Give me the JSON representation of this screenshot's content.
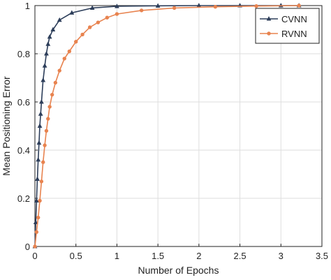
{
  "chart_data": {
    "type": "line",
    "title": "",
    "xlabel": "Number of Epochs",
    "ylabel": "Mean Positioning Error",
    "xlim": [
      0,
      3.5
    ],
    "ylim": [
      0,
      1
    ],
    "x_ticks": [
      0,
      0.5,
      1,
      1.5,
      2,
      2.5,
      3,
      3.5
    ],
    "x_tick_labels": [
      "0",
      "0.5",
      "1",
      "1.5",
      "2",
      "2.5",
      "3",
      "3.5"
    ],
    "y_ticks": [
      0,
      0.2,
      0.4,
      0.6,
      0.8,
      1
    ],
    "y_tick_labels": [
      "0",
      "0.2",
      "0.4",
      "0.6",
      "0.8",
      "1"
    ],
    "grid": true,
    "legend_position": "top-right",
    "series": [
      {
        "name": "CVNN",
        "color": "#2d3e5a",
        "marker": "triangle",
        "x": [
          0,
          0.01,
          0.02,
          0.03,
          0.04,
          0.05,
          0.06,
          0.07,
          0.08,
          0.1,
          0.12,
          0.14,
          0.16,
          0.18,
          0.22,
          0.3,
          0.45,
          0.7,
          1.0,
          1.5,
          2.0,
          2.5,
          3.0,
          3.22
        ],
        "y": [
          0.0,
          0.1,
          0.19,
          0.28,
          0.36,
          0.43,
          0.5,
          0.55,
          0.6,
          0.69,
          0.75,
          0.8,
          0.84,
          0.87,
          0.9,
          0.94,
          0.97,
          0.99,
          0.997,
          0.999,
          1.0,
          1.0,
          1.0,
          1.0
        ]
      },
      {
        "name": "RVNN",
        "color": "#e8834f",
        "marker": "circle",
        "x": [
          0,
          0.02,
          0.04,
          0.06,
          0.08,
          0.1,
          0.12,
          0.14,
          0.16,
          0.18,
          0.21,
          0.25,
          0.3,
          0.36,
          0.42,
          0.5,
          0.58,
          0.67,
          0.77,
          0.88,
          1.0,
          1.3,
          1.7,
          2.2,
          2.7,
          3.22
        ],
        "y": [
          0.0,
          0.06,
          0.12,
          0.19,
          0.27,
          0.35,
          0.42,
          0.48,
          0.53,
          0.58,
          0.63,
          0.68,
          0.73,
          0.78,
          0.81,
          0.85,
          0.88,
          0.91,
          0.93,
          0.95,
          0.965,
          0.98,
          0.99,
          0.995,
          0.998,
          1.0
        ]
      }
    ]
  }
}
